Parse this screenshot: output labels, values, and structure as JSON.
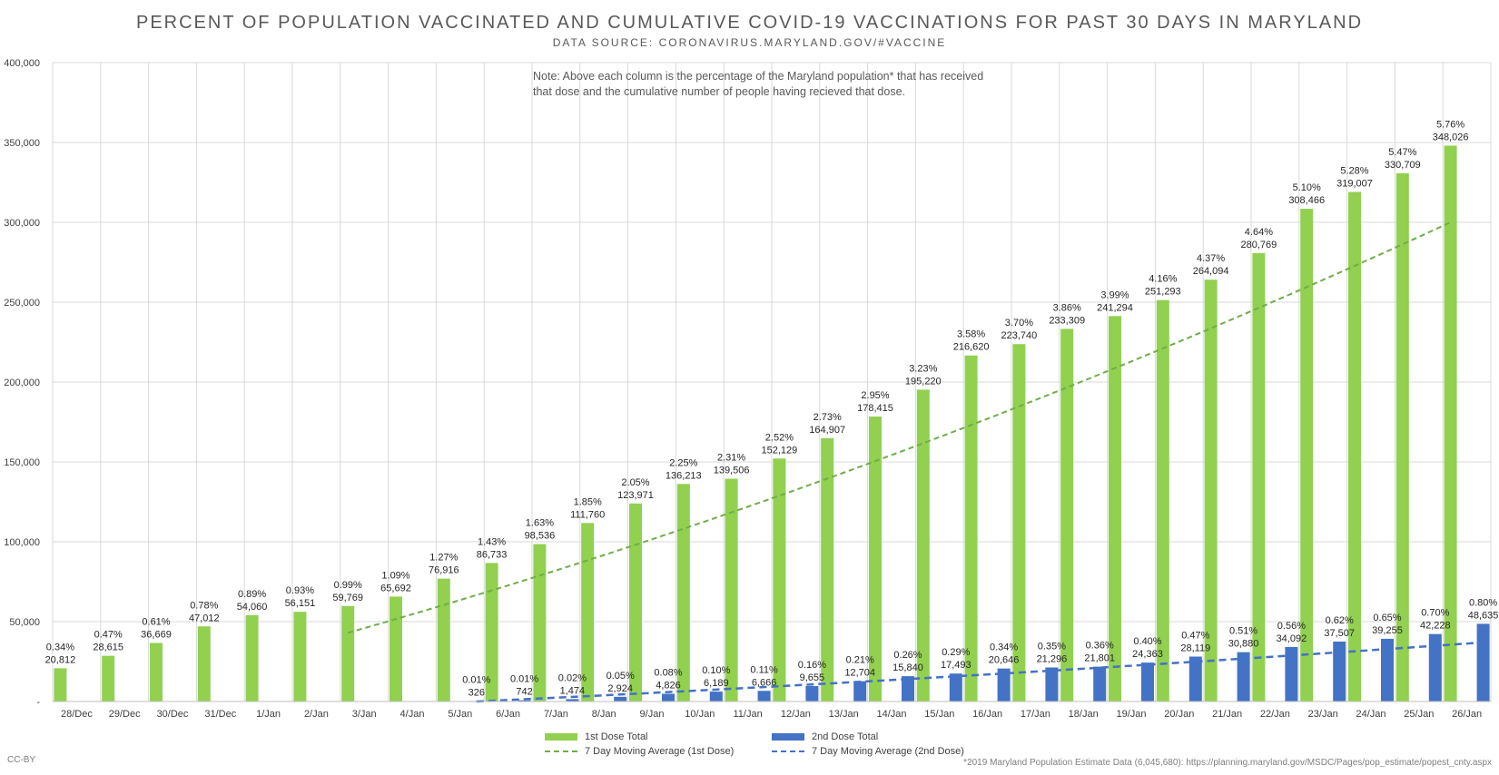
{
  "title": "PERCENT OF POPULATION VACCINATED AND CUMULATIVE COVID-19 VACCINATIONS FOR PAST 30 DAYS IN MARYLAND",
  "subtitle": "DATA SOURCE: CORONAVIRUS.MARYLAND.GOV/#VACCINE",
  "note": "Note: Above each column is the percentage of the Maryland population* that has received that dose and the cumulative number of people having recieved that dose.",
  "license": "CC-BY",
  "footnote": "*2019 Maryland Population Estimate Data (6,045,680): https://planning.maryland.gov/MSDC/Pages/pop_estimate/popest_cnty.aspx",
  "colors": {
    "dose1": "#92d050",
    "dose2": "#4472c4",
    "ma1": "#70ad47",
    "ma2": "#4472c4",
    "grid": "#d9d9d9"
  },
  "chart_data": {
    "type": "bar",
    "ylim": [
      0,
      400000
    ],
    "yticks": [
      "-",
      "50,000",
      "100,000",
      "150,000",
      "200,000",
      "250,000",
      "300,000",
      "350,000",
      "400,000"
    ],
    "categories": [
      "28/Dec",
      "29/Dec",
      "30/Dec",
      "31/Dec",
      "1/Jan",
      "2/Jan",
      "3/Jan",
      "4/Jan",
      "5/Jan",
      "6/Jan",
      "7/Jan",
      "8/Jan",
      "9/Jan",
      "10/Jan",
      "11/Jan",
      "12/Jan",
      "13/Jan",
      "14/Jan",
      "15/Jan",
      "16/Jan",
      "17/Jan",
      "18/Jan",
      "19/Jan",
      "20/Jan",
      "21/Jan",
      "22/Jan",
      "23/Jan",
      "24/Jan",
      "25/Jan",
      "26/Jan"
    ],
    "series": [
      {
        "name": "1st Dose Total",
        "values": [
          20812,
          28615,
          36669,
          47012,
          54060,
          56151,
          59769,
          65692,
          76916,
          86733,
          98536,
          111760,
          123971,
          136213,
          139506,
          152129,
          164907,
          178415,
          195220,
          216620,
          223740,
          233309,
          241294,
          251293,
          264094,
          280769,
          308466,
          319007,
          330709,
          348026
        ],
        "labels": [
          "20,812",
          "28,615",
          "36,669",
          "47,012",
          "54,060",
          "56,151",
          "59,769",
          "65,692",
          "76,916",
          "86,733",
          "98,536",
          "111,760",
          "123,971",
          "136,213",
          "139,506",
          "152,129",
          "164,907",
          "178,415",
          "195,220",
          "216,620",
          "223,740",
          "233,309",
          "241,294",
          "251,293",
          "264,094",
          "280,769",
          "308,466",
          "319,007",
          "330,709",
          "348,026"
        ],
        "pct": [
          "0.34%",
          "0.47%",
          "0.61%",
          "0.78%",
          "0.89%",
          "0.93%",
          "0.99%",
          "1.09%",
          "1.27%",
          "1.43%",
          "1.63%",
          "1.85%",
          "2.05%",
          "2.25%",
          "2.31%",
          "2.52%",
          "2.73%",
          "2.95%",
          "3.23%",
          "3.58%",
          "3.70%",
          "3.86%",
          "3.99%",
          "4.16%",
          "4.37%",
          "4.64%",
          "5.10%",
          "5.28%",
          "5.47%",
          "5.76%"
        ]
      },
      {
        "name": "2nd Dose Total",
        "values": [
          0,
          0,
          0,
          0,
          0,
          0,
          0,
          0,
          326,
          742,
          1474,
          2924,
          4826,
          6189,
          6666,
          9655,
          12704,
          15840,
          17493,
          20646,
          21296,
          21801,
          24363,
          28119,
          30880,
          34092,
          37507,
          39255,
          42228,
          48635
        ],
        "labels": [
          "",
          "",
          "",
          "",
          "",
          "",
          "",
          "",
          "326",
          "742",
          "1,474",
          "2,924",
          "4,826",
          "6,189",
          "6,666",
          "9,655",
          "12,704",
          "15,840",
          "17,493",
          "20,646",
          "21,296",
          "21,801",
          "24,363",
          "28,119",
          "30,880",
          "34,092",
          "37,507",
          "39,255",
          "42,228",
          "48,635"
        ],
        "pct": [
          "",
          "",
          "",
          "",
          "",
          "",
          "",
          "",
          "0.01%",
          "0.01%",
          "0.02%",
          "0.05%",
          "0.08%",
          "0.10%",
          "0.11%",
          "0.16%",
          "0.21%",
          "0.26%",
          "0.29%",
          "0.34%",
          "0.35%",
          "0.36%",
          "0.40%",
          "0.47%",
          "0.51%",
          "0.56%",
          "0.62%",
          "0.65%",
          "0.70%",
          "0.80%"
        ]
      }
    ],
    "trendlines": [
      {
        "name": "7 Day Moving Average (1st Dose)",
        "x_start": "3/Jan",
        "x_end": "26/Jan",
        "y_start": 43000,
        "y_end": 300000,
        "style": "dashed"
      },
      {
        "name": "7 Day Moving Average (2nd Dose)",
        "x_start": "5/Jan",
        "x_end": "26/Jan",
        "y_start": 0,
        "y_end": 37000,
        "style": "dashed"
      }
    ],
    "grid": true,
    "legend": "bottom"
  }
}
